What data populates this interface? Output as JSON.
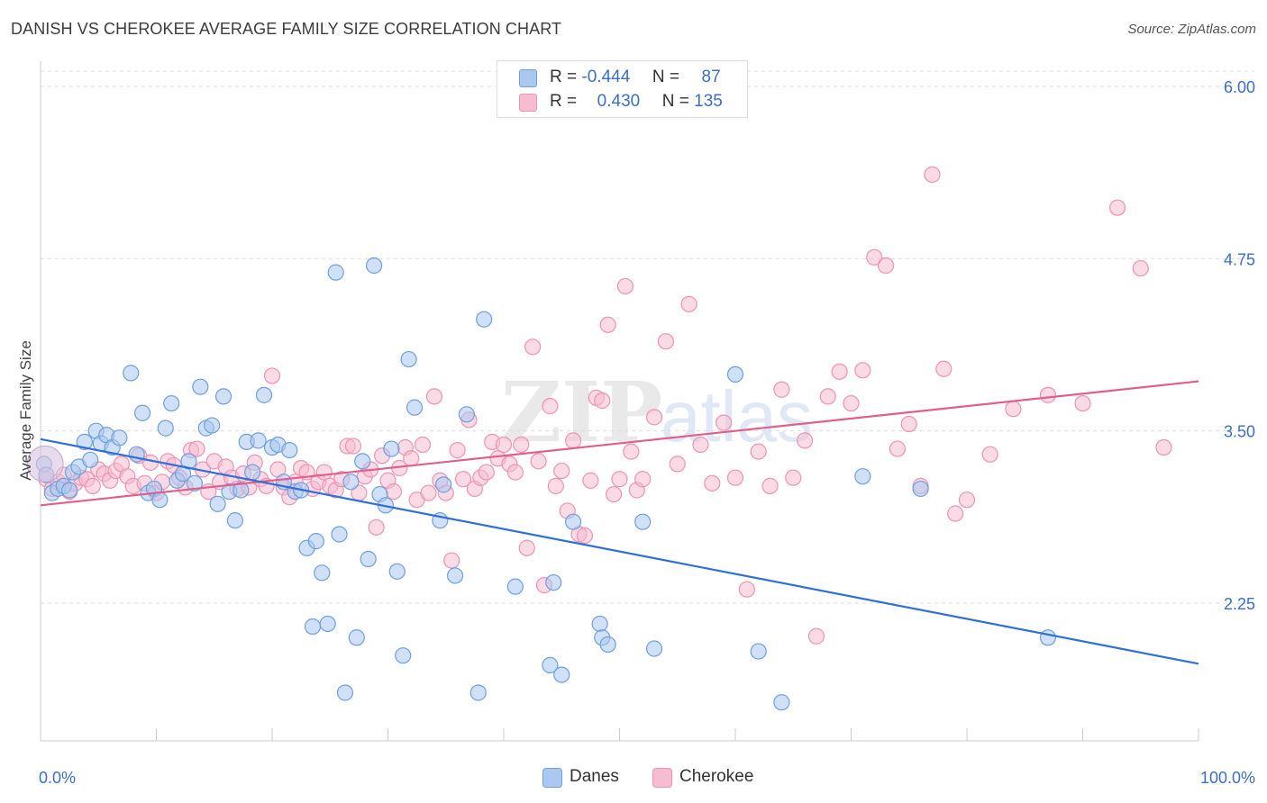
{
  "header": {
    "title": "DANISH VS CHEROKEE AVERAGE FAMILY SIZE CORRELATION CHART",
    "source": "Source: ZipAtlas.com"
  },
  "legend_stats": {
    "danes": {
      "r_label": "R =",
      "r_value": "-0.444",
      "n_label": "N =",
      "n_value": "87"
    },
    "cherokee": {
      "r_label": "R =",
      "r_value": "0.430",
      "n_label": "N =",
      "n_value": "135"
    }
  },
  "colors": {
    "danes_fill": "#aac8f0",
    "danes_stroke": "#6f9fde",
    "danes_line": "#2f6fd6",
    "cherokee_fill": "#f6bcd0",
    "cherokee_stroke": "#ee93b3",
    "cherokee_line": "#e0608c",
    "tick_label": "#3a6fc4",
    "grid": "#dcdcdc"
  },
  "watermark": {
    "part1": "ZIP",
    "part2": "atlas"
  },
  "chart_data": {
    "type": "scatter",
    "title": "DANISH VS CHEROKEE AVERAGE FAMILY SIZE CORRELATION CHART",
    "xlabel": "",
    "ylabel": "Average Family Size",
    "xlim": [
      0,
      100
    ],
    "ylim": [
      1.0,
      6.15
    ],
    "x_tick_labels": [
      "0.0%",
      "100.0%"
    ],
    "y_ticks": [
      2.25,
      3.5,
      4.75,
      6.0
    ],
    "y_tick_labels": [
      "2.25",
      "3.50",
      "4.75",
      "6.00"
    ],
    "grid": "horizontal-dashed",
    "legend_position": "bottom-center",
    "series": [
      {
        "name": "Danes",
        "trend": {
          "x": [
            0,
            100
          ],
          "y": [
            3.44,
            1.81
          ]
        },
        "points": [
          [
            0.3,
            3.26
          ],
          [
            0.5,
            3.18
          ],
          [
            1.0,
            3.05
          ],
          [
            1.5,
            3.08
          ],
          [
            2.0,
            3.1
          ],
          [
            2.5,
            3.07
          ],
          [
            2.8,
            3.2
          ],
          [
            3.3,
            3.24
          ],
          [
            3.8,
            3.42
          ],
          [
            4.3,
            3.29
          ],
          [
            4.8,
            3.5
          ],
          [
            5.2,
            3.41
          ],
          [
            5.7,
            3.47
          ],
          [
            6.2,
            3.38
          ],
          [
            6.8,
            3.45
          ],
          [
            7.8,
            3.92
          ],
          [
            8.3,
            3.33
          ],
          [
            8.8,
            3.63
          ],
          [
            9.3,
            3.05
          ],
          [
            9.8,
            3.08
          ],
          [
            10.3,
            3.0
          ],
          [
            10.8,
            3.52
          ],
          [
            11.3,
            3.7
          ],
          [
            11.8,
            3.14
          ],
          [
            12.3,
            3.19
          ],
          [
            12.8,
            3.28
          ],
          [
            13.3,
            3.12
          ],
          [
            13.8,
            3.82
          ],
          [
            14.3,
            3.52
          ],
          [
            14.8,
            3.54
          ],
          [
            15.3,
            2.97
          ],
          [
            15.8,
            3.75
          ],
          [
            16.3,
            3.06
          ],
          [
            16.8,
            2.85
          ],
          [
            17.3,
            3.07
          ],
          [
            17.8,
            3.42
          ],
          [
            18.3,
            3.2
          ],
          [
            18.8,
            3.43
          ],
          [
            19.3,
            3.76
          ],
          [
            20.0,
            3.38
          ],
          [
            20.5,
            3.4
          ],
          [
            21.0,
            3.13
          ],
          [
            21.5,
            3.36
          ],
          [
            22.0,
            3.06
          ],
          [
            22.5,
            3.07
          ],
          [
            23.0,
            2.65
          ],
          [
            23.5,
            2.08
          ],
          [
            23.8,
            2.7
          ],
          [
            24.3,
            2.47
          ],
          [
            24.8,
            2.1
          ],
          [
            25.5,
            4.65
          ],
          [
            25.8,
            2.75
          ],
          [
            26.3,
            1.6
          ],
          [
            26.8,
            3.13
          ],
          [
            27.3,
            2.0
          ],
          [
            27.8,
            3.28
          ],
          [
            28.3,
            2.57
          ],
          [
            28.8,
            4.7
          ],
          [
            29.3,
            3.04
          ],
          [
            29.8,
            2.96
          ],
          [
            30.3,
            3.37
          ],
          [
            30.8,
            2.48
          ],
          [
            31.3,
            1.87
          ],
          [
            31.8,
            4.02
          ],
          [
            32.3,
            3.67
          ],
          [
            34.5,
            2.85
          ],
          [
            34.8,
            3.11
          ],
          [
            35.8,
            2.45
          ],
          [
            36.8,
            3.62
          ],
          [
            37.8,
            1.6
          ],
          [
            38.3,
            4.31
          ],
          [
            41.0,
            2.37
          ],
          [
            44.0,
            1.8
          ],
          [
            44.3,
            2.4
          ],
          [
            45.0,
            1.73
          ],
          [
            46.0,
            2.84
          ],
          [
            48.3,
            2.1
          ],
          [
            48.5,
            2.0
          ],
          [
            49.0,
            1.95
          ],
          [
            52.0,
            2.84
          ],
          [
            53.0,
            1.92
          ],
          [
            60.0,
            3.91
          ],
          [
            62.0,
            1.9
          ],
          [
            64.0,
            1.53
          ],
          [
            71.0,
            3.17
          ],
          [
            76.0,
            3.08
          ],
          [
            87.0,
            2.0
          ]
        ]
      },
      {
        "name": "Cherokee",
        "trend": {
          "x": [
            0,
            100
          ],
          "y": [
            2.96,
            3.86
          ]
        },
        "points": [
          [
            0.5,
            3.15
          ],
          [
            1.0,
            3.08
          ],
          [
            1.5,
            3.13
          ],
          [
            2.0,
            3.18
          ],
          [
            2.5,
            3.06
          ],
          [
            3.0,
            3.12
          ],
          [
            3.5,
            3.16
          ],
          [
            4.0,
            3.15
          ],
          [
            4.5,
            3.1
          ],
          [
            5.0,
            3.22
          ],
          [
            5.5,
            3.19
          ],
          [
            6.0,
            3.14
          ],
          [
            6.5,
            3.21
          ],
          [
            7.0,
            3.26
          ],
          [
            7.5,
            3.17
          ],
          [
            8.0,
            3.1
          ],
          [
            8.5,
            3.32
          ],
          [
            9.0,
            3.12
          ],
          [
            9.5,
            3.27
          ],
          [
            10.0,
            3.05
          ],
          [
            10.5,
            3.13
          ],
          [
            11.0,
            3.28
          ],
          [
            11.5,
            3.25
          ],
          [
            12.0,
            3.16
          ],
          [
            12.5,
            3.09
          ],
          [
            13.0,
            3.36
          ],
          [
            13.5,
            3.37
          ],
          [
            14.0,
            3.22
          ],
          [
            14.5,
            3.06
          ],
          [
            15.0,
            3.28
          ],
          [
            15.5,
            3.13
          ],
          [
            16.0,
            3.24
          ],
          [
            16.5,
            3.16
          ],
          [
            17.0,
            3.08
          ],
          [
            17.5,
            3.19
          ],
          [
            18.0,
            3.09
          ],
          [
            18.5,
            3.27
          ],
          [
            19.0,
            3.15
          ],
          [
            19.5,
            3.1
          ],
          [
            20.0,
            3.9
          ],
          [
            20.5,
            3.22
          ],
          [
            21.0,
            3.09
          ],
          [
            21.5,
            3.02
          ],
          [
            22.0,
            3.13
          ],
          [
            22.5,
            3.23
          ],
          [
            23.0,
            3.2
          ],
          [
            23.5,
            3.08
          ],
          [
            24.0,
            3.13
          ],
          [
            24.5,
            3.2
          ],
          [
            25.0,
            3.1
          ],
          [
            25.5,
            3.07
          ],
          [
            26.0,
            3.15
          ],
          [
            26.5,
            3.39
          ],
          [
            27.0,
            3.39
          ],
          [
            27.5,
            3.05
          ],
          [
            28.0,
            3.17
          ],
          [
            28.5,
            3.22
          ],
          [
            29.0,
            2.8
          ],
          [
            29.5,
            3.32
          ],
          [
            30.0,
            3.14
          ],
          [
            30.5,
            3.06
          ],
          [
            31.0,
            3.23
          ],
          [
            31.5,
            3.38
          ],
          [
            32.0,
            3.3
          ],
          [
            32.5,
            3.0
          ],
          [
            33.0,
            3.4
          ],
          [
            33.5,
            3.05
          ],
          [
            34.0,
            3.75
          ],
          [
            34.5,
            3.14
          ],
          [
            35.0,
            3.05
          ],
          [
            35.5,
            2.56
          ],
          [
            36.0,
            3.36
          ],
          [
            36.5,
            3.15
          ],
          [
            37.0,
            3.58
          ],
          [
            37.5,
            3.08
          ],
          [
            38.0,
            3.16
          ],
          [
            38.5,
            3.2
          ],
          [
            39.0,
            3.42
          ],
          [
            39.5,
            3.3
          ],
          [
            40.0,
            3.4
          ],
          [
            40.5,
            3.26
          ],
          [
            41.0,
            3.2
          ],
          [
            41.5,
            3.4
          ],
          [
            42.0,
            2.65
          ],
          [
            42.5,
            4.11
          ],
          [
            43.0,
            3.28
          ],
          [
            43.5,
            2.38
          ],
          [
            44.0,
            3.68
          ],
          [
            44.5,
            3.1
          ],
          [
            45.0,
            3.21
          ],
          [
            45.5,
            2.92
          ],
          [
            46.0,
            3.43
          ],
          [
            46.5,
            2.75
          ],
          [
            47.0,
            2.74
          ],
          [
            47.5,
            3.14
          ],
          [
            48.0,
            3.74
          ],
          [
            48.5,
            3.72
          ],
          [
            49.0,
            4.27
          ],
          [
            49.5,
            3.04
          ],
          [
            50.0,
            3.15
          ],
          [
            50.5,
            4.55
          ],
          [
            51.0,
            3.35
          ],
          [
            51.5,
            3.07
          ],
          [
            52.0,
            3.15
          ],
          [
            53.0,
            3.6
          ],
          [
            54.0,
            4.15
          ],
          [
            55.0,
            3.26
          ],
          [
            56.0,
            4.42
          ],
          [
            57.0,
            3.4
          ],
          [
            58.0,
            3.12
          ],
          [
            59.0,
            3.56
          ],
          [
            60.0,
            3.16
          ],
          [
            61.0,
            2.35
          ],
          [
            62.0,
            3.35
          ],
          [
            63.0,
            3.1
          ],
          [
            64.0,
            3.8
          ],
          [
            65.0,
            3.16
          ],
          [
            66.0,
            3.43
          ],
          [
            67.0,
            2.01
          ],
          [
            68.0,
            3.75
          ],
          [
            69.0,
            3.93
          ],
          [
            70.0,
            3.7
          ],
          [
            71.0,
            3.94
          ],
          [
            72.0,
            4.76
          ],
          [
            73.0,
            4.7
          ],
          [
            74.0,
            3.37
          ],
          [
            75.0,
            3.55
          ],
          [
            76.0,
            3.1
          ],
          [
            77.0,
            5.36
          ],
          [
            78.0,
            3.95
          ],
          [
            79.0,
            2.9
          ],
          [
            80.0,
            3.0
          ],
          [
            82.0,
            3.33
          ],
          [
            84.0,
            3.66
          ],
          [
            87.0,
            3.76
          ],
          [
            90.0,
            3.7
          ],
          [
            93.0,
            5.12
          ],
          [
            95.0,
            4.68
          ],
          [
            97.0,
            3.38
          ]
        ]
      }
    ]
  },
  "bottom_legend": {
    "items": [
      "Danes",
      "Cherokee"
    ]
  }
}
